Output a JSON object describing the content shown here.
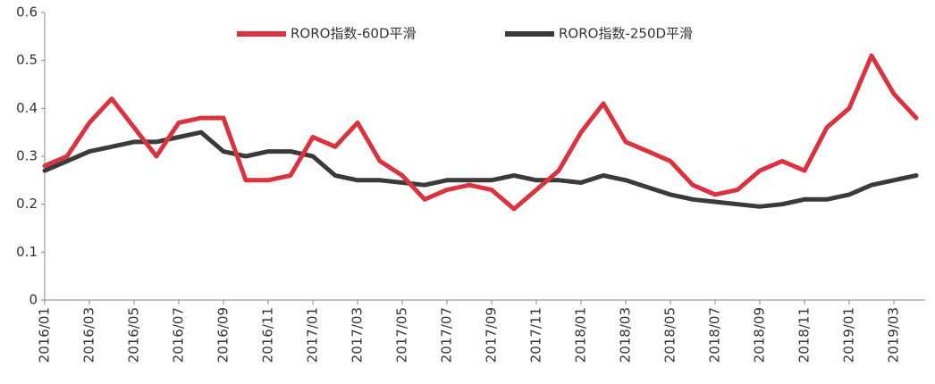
{
  "chart_data": {
    "type": "line",
    "categories": [
      "2016/01",
      null,
      "2016/03",
      null,
      "2016/05",
      null,
      "2016/07",
      null,
      "2016/09",
      null,
      "2016/11",
      null,
      "2017/01",
      null,
      "2017/03",
      null,
      "2017/05",
      null,
      "2017/07",
      null,
      "2017/09",
      null,
      "2017/11",
      null,
      "2018/01",
      null,
      "2018/03",
      null,
      "2018/05",
      null,
      "2018/07",
      null,
      "2018/09",
      null,
      "2018/11",
      null,
      "2019/01",
      null,
      "2019/03",
      null
    ],
    "series": [
      {
        "name": "RORO指数-60D平滑",
        "color": "#d9333f",
        "values": [
          0.28,
          0.3,
          0.37,
          0.42,
          0.36,
          0.3,
          0.37,
          0.38,
          0.38,
          0.25,
          0.25,
          0.26,
          0.34,
          0.32,
          0.37,
          0.29,
          0.26,
          0.21,
          0.23,
          0.24,
          0.23,
          0.19,
          0.23,
          0.27,
          0.35,
          0.41,
          0.33,
          0.31,
          0.29,
          0.24,
          0.22,
          0.23,
          0.27,
          0.29,
          0.27,
          0.36,
          0.4,
          0.51,
          0.43,
          0.38
        ]
      },
      {
        "name": "RORO指数-250D平滑",
        "color": "#3a3a3a",
        "values": [
          0.27,
          0.29,
          0.31,
          0.32,
          0.33,
          0.33,
          0.34,
          0.35,
          0.31,
          0.3,
          0.31,
          0.31,
          0.3,
          0.26,
          0.25,
          0.25,
          0.245,
          0.24,
          0.25,
          0.25,
          0.25,
          0.26,
          0.25,
          0.25,
          0.245,
          0.26,
          0.25,
          0.235,
          0.22,
          0.21,
          0.205,
          0.2,
          0.195,
          0.2,
          0.21,
          0.21,
          0.22,
          0.24,
          0.25,
          0.26
        ]
      }
    ],
    "ylim": [
      0,
      0.6
    ],
    "yticks": [
      0,
      0.1,
      0.2,
      0.3,
      0.4,
      0.5,
      0.6
    ],
    "legend": "top"
  }
}
